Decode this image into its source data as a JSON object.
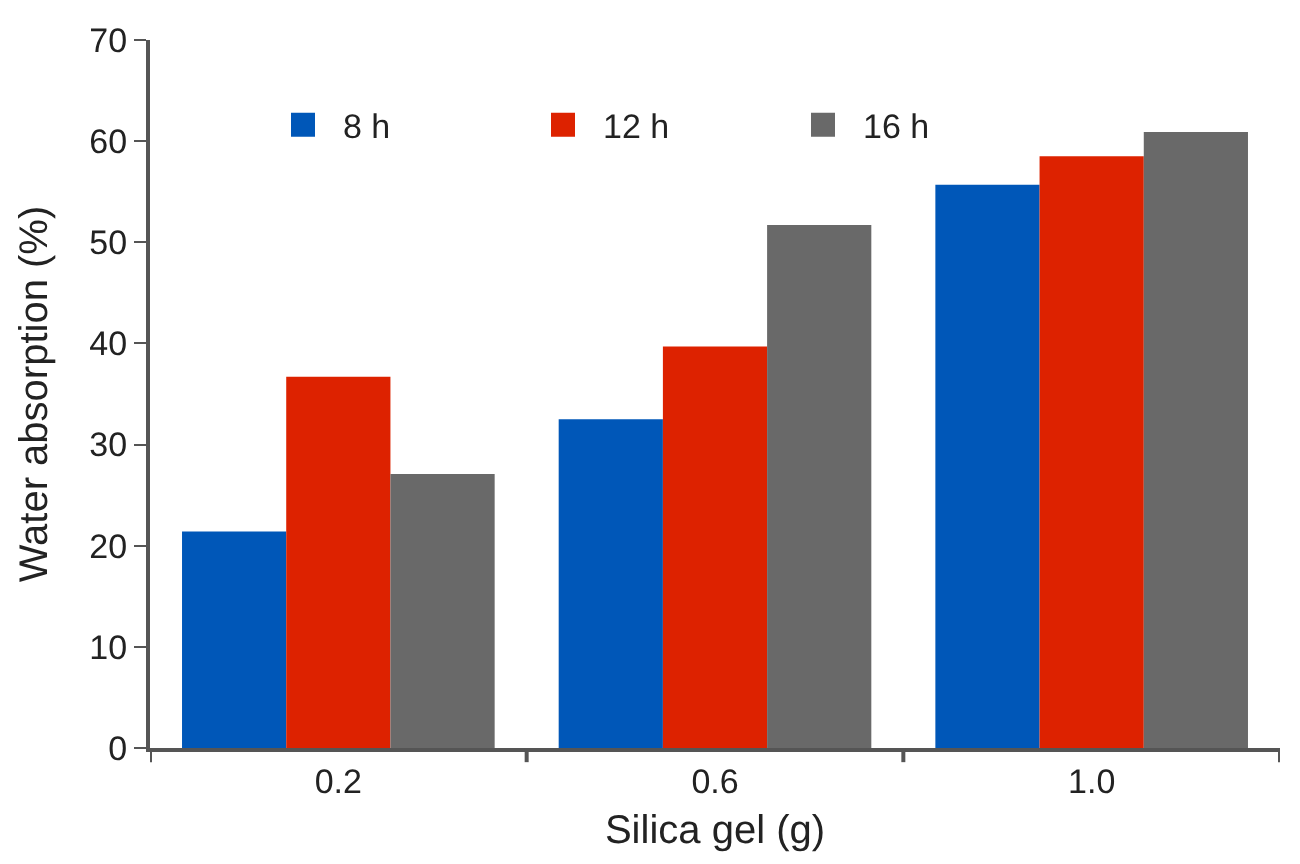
{
  "chart_data": {
    "type": "bar",
    "xlabel": "Silica gel (g)",
    "ylabel": "Water absorption (%)",
    "categories": [
      "0.2",
      "0.6",
      "1.0"
    ],
    "series": [
      {
        "name": "8 h",
        "color": "#0057b8",
        "values": [
          21.4,
          32.5,
          55.7
        ]
      },
      {
        "name": "12 h",
        "color": "#dd2200",
        "values": [
          36.7,
          39.7,
          58.5
        ]
      },
      {
        "name": "16 h",
        "color": "#696969",
        "values": [
          27.1,
          51.7,
          60.9
        ]
      }
    ],
    "ylim": [
      0,
      70
    ],
    "yticks": [
      0,
      10,
      20,
      30,
      40,
      50,
      60,
      70
    ],
    "legend": "top left"
  }
}
